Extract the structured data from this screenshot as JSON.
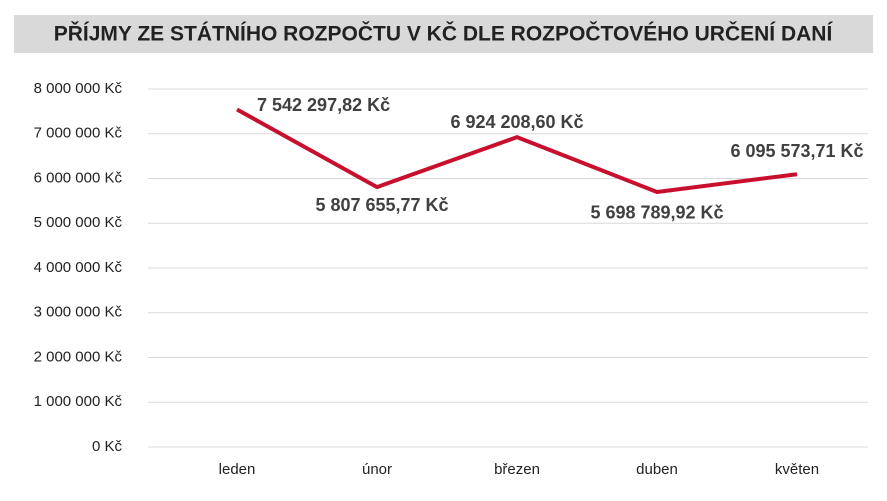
{
  "chart_data": {
    "type": "line",
    "title": "PŘÍJMY ZE STÁTNÍHO ROZPOČTU V KČ DLE ROZPOČTOVÉHO URČENÍ DANÍ",
    "categories": [
      "leden",
      "únor",
      "březen",
      "duben",
      "květen"
    ],
    "series": [
      {
        "color": "#c8102e",
        "values": [
          7542297.82,
          5807655.77,
          6924208.6,
          5698789.92,
          6095573.71
        ],
        "value_labels": [
          "7 542 297,82 Kč",
          "5 807 655,77 Kč",
          "6 924 208,60 Kč",
          "5 698 789,92 Kč",
          "6 095 573,71 Kč"
        ]
      }
    ],
    "ylim": [
      0,
      8000000
    ],
    "yticks": [
      {
        "value": 0,
        "label": "0 Kč"
      },
      {
        "value": 1000000,
        "label": "1 000 000 Kč"
      },
      {
        "value": 2000000,
        "label": "2 000 000 Kč"
      },
      {
        "value": 3000000,
        "label": "3 000 000 Kč"
      },
      {
        "value": 4000000,
        "label": "4 000 000 Kč"
      },
      {
        "value": 5000000,
        "label": "5 000 000 Kč"
      },
      {
        "value": 6000000,
        "label": "6 000 000 Kč"
      },
      {
        "value": 7000000,
        "label": "7 000 000 Kč"
      },
      {
        "value": 8000000,
        "label": "8 000 000 Kč"
      }
    ],
    "grid": true
  }
}
